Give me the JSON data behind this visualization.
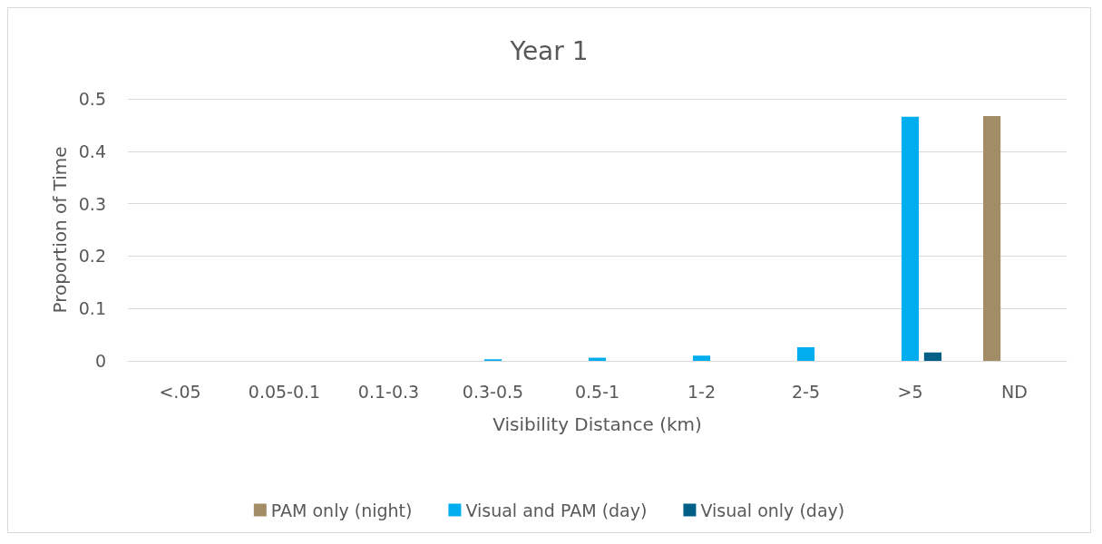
{
  "chart_data": {
    "type": "bar",
    "title": "Year 1",
    "xlabel": "Visibility Distance (km)",
    "ylabel": "Proportion of Time",
    "categories": [
      "<.05",
      "0.05-0.1",
      "0.1-0.3",
      "0.3-0.5",
      "0.5-1",
      "1-2",
      "2-5",
      ">5",
      "ND"
    ],
    "series": [
      {
        "name": "PAM only (night)",
        "color": "#a38d66",
        "values": [
          0,
          0,
          0,
          0,
          0,
          0,
          0,
          0,
          0.467
        ]
      },
      {
        "name": "Visual and PAM (day)",
        "color": "#00aeef",
        "values": [
          0,
          0,
          0,
          0.003,
          0.006,
          0.01,
          0.026,
          0.466,
          0
        ]
      },
      {
        "name": "Visual only (day)",
        "color": "#005f87",
        "values": [
          0,
          0,
          0,
          0,
          0,
          0,
          0,
          0.016,
          0
        ]
      }
    ],
    "ylim": [
      0,
      0.5
    ],
    "yticks": [
      0,
      0.1,
      0.2,
      0.3,
      0.4,
      0.5
    ],
    "grid": "y",
    "legend": "bottom"
  }
}
